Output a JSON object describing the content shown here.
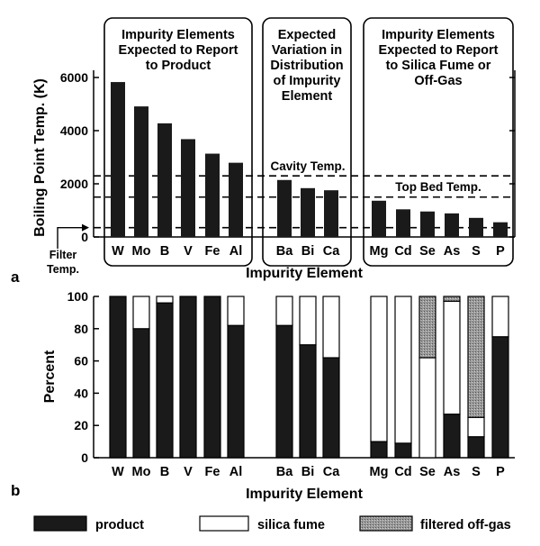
{
  "colors": {
    "product": "#1a1a1a",
    "silica_fume": "#ffffff",
    "filtered_off_gas": "#999999",
    "ink": "#000000"
  },
  "chart_data": [
    {
      "type": "bar",
      "panel_label": "a",
      "xlabel": "Impurity Element",
      "ylabel": "Boiling Point Temp. (K)",
      "ylim": [
        0,
        6000
      ],
      "yticks": [
        "0",
        "2000",
        "4000",
        "6000"
      ],
      "groups": [
        {
          "title": [
            "Impurity Elements",
            "Expected to Report",
            "to Product"
          ],
          "categories": [
            "W",
            "Mo",
            "B",
            "V",
            "Fe",
            "Al"
          ],
          "values": [
            5828,
            4912,
            4275,
            3680,
            3134,
            2792
          ]
        },
        {
          "title": [
            "Expected",
            "Variation in",
            "Distribution",
            "of Impurity",
            "Element"
          ],
          "categories": [
            "Ba",
            "Bi",
            "Ca"
          ],
          "values": [
            2143,
            1837,
            1757
          ]
        },
        {
          "title": [
            "Impurity Elements",
            "Expected to Report",
            "to Silica Fume or",
            "Off-Gas"
          ],
          "categories": [
            "Mg",
            "Cd",
            "Se",
            "As",
            "S",
            "P"
          ],
          "values": [
            1363,
            1040,
            958,
            887,
            718,
            553
          ]
        }
      ],
      "reference_lines": [
        {
          "label": "Cavity Temp.",
          "value": 2300
        },
        {
          "label": "Top Bed Temp.",
          "value": 1500
        },
        {
          "label": "Filter Temp.",
          "value": 350
        }
      ],
      "filter_label": [
        "Filter",
        "Temp."
      ]
    },
    {
      "type": "bar",
      "stacked": true,
      "panel_label": "b",
      "xlabel": "Impurity Element",
      "ylabel": "Percent",
      "ylim": [
        0,
        100
      ],
      "yticks": [
        "0",
        "20",
        "40",
        "60",
        "80",
        "100"
      ],
      "groups": [
        {
          "categories": [
            "W",
            "Mo",
            "B",
            "V",
            "Fe",
            "Al"
          ]
        },
        {
          "categories": [
            "Ba",
            "Bi",
            "Ca"
          ]
        },
        {
          "categories": [
            "Mg",
            "Cd",
            "Se",
            "As",
            "S",
            "P"
          ]
        }
      ],
      "series": [
        {
          "name": "product",
          "values": [
            100,
            80,
            96,
            100,
            100,
            82,
            82,
            70,
            62,
            10,
            9,
            0,
            27,
            13,
            75
          ]
        },
        {
          "name": "silica fume",
          "values": [
            0,
            20,
            4,
            0,
            0,
            18,
            18,
            30,
            38,
            90,
            91,
            62,
            70,
            12,
            25
          ]
        },
        {
          "name": "filtered off-gas",
          "values": [
            0,
            0,
            0,
            0,
            0,
            0,
            0,
            0,
            0,
            0,
            0,
            38,
            3,
            75,
            0
          ]
        }
      ],
      "legend": [
        "product",
        "silica fume",
        "filtered off-gas"
      ],
      "legend_position": "bottom"
    }
  ]
}
